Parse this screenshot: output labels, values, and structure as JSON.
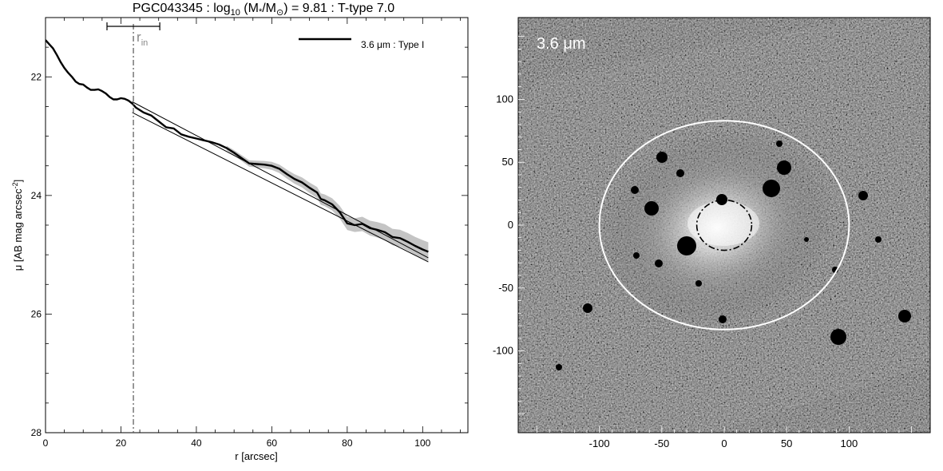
{
  "title": {
    "prefix": "PGC043345 : log",
    "sub": "10",
    "middle": " (M",
    "star": "*",
    "slash": "/M",
    "sun": "⊙",
    "suffix": ") = 9.81 : T-type 7.0"
  },
  "chart_data": [
    {
      "type": "line",
      "xlabel": "r [arcsec]",
      "ylabel_main": "μ [AB mag arcsec",
      "ylabel_sup": "-2",
      "ylabel_end": "]",
      "xlim": [
        0,
        112
      ],
      "ylim": [
        28,
        21
      ],
      "y_inverted": true,
      "xticks": [
        0,
        20,
        40,
        60,
        80,
        100
      ],
      "yticks": [
        22,
        24,
        26,
        28
      ],
      "legend": {
        "label": "3.6 μm : Type I",
        "placement": "top-right"
      },
      "rin": {
        "label": "r",
        "sub": "in",
        "x": 23.3,
        "bar_x": [
          16.3,
          30.3
        ]
      },
      "series": [
        {
          "name": "3.6 μm : Type I",
          "x": [
            0,
            1,
            2,
            3,
            4,
            5,
            6,
            7,
            8,
            9,
            10,
            11,
            12,
            13,
            14,
            15,
            16,
            17,
            18,
            19,
            20,
            21,
            22,
            23,
            24,
            26,
            28,
            30,
            32,
            34,
            36,
            38,
            40,
            42,
            44,
            46,
            48,
            50,
            52,
            54,
            56,
            58,
            60,
            62,
            64,
            66,
            68,
            70,
            72,
            73,
            74,
            76,
            78,
            80,
            82,
            84,
            86,
            88,
            90,
            92,
            94,
            96,
            98,
            100,
            101.5
          ],
          "y": [
            21.38,
            21.45,
            21.52,
            21.63,
            21.75,
            21.85,
            21.93,
            22.0,
            22.08,
            22.12,
            22.13,
            22.18,
            22.22,
            22.22,
            22.21,
            22.24,
            22.28,
            22.34,
            22.38,
            22.38,
            22.36,
            22.37,
            22.4,
            22.45,
            22.52,
            22.6,
            22.65,
            22.75,
            22.85,
            22.87,
            22.97,
            23.01,
            23.04,
            23.07,
            23.1,
            23.14,
            23.2,
            23.28,
            23.37,
            23.46,
            23.47,
            23.48,
            23.5,
            23.55,
            23.64,
            23.72,
            23.78,
            23.87,
            23.95,
            24.06,
            24.08,
            24.15,
            24.28,
            24.47,
            24.5,
            24.48,
            24.55,
            24.58,
            24.62,
            24.7,
            24.72,
            24.78,
            24.85,
            24.91,
            24.95
          ]
        },
        {
          "name": "",
          "x": [
            23,
            101.5
          ],
          "y": [
            22.42,
            25.05
          ]
        },
        {
          "name": "",
          "x": [
            23,
            101.5
          ],
          "y": [
            22.6,
            25.12
          ]
        }
      ],
      "uncertainty_band_x": [
        48,
        101.5
      ]
    },
    {
      "type": "image",
      "label": "3.6 μm",
      "xticks": [
        -100,
        -50,
        0,
        50,
        100
      ],
      "yticks": [
        100,
        50,
        0,
        -50,
        -100
      ],
      "xlim": [
        -165,
        165
      ],
      "ylim": [
        -165,
        165
      ],
      "outer_ellipse": {
        "cx": 0,
        "cy": 0,
        "rx": 100,
        "ry": 83
      },
      "inner_ellipse": {
        "cx": 0,
        "cy": 0,
        "rx": 22,
        "ry": 20,
        "style": "dash-dot"
      }
    }
  ]
}
